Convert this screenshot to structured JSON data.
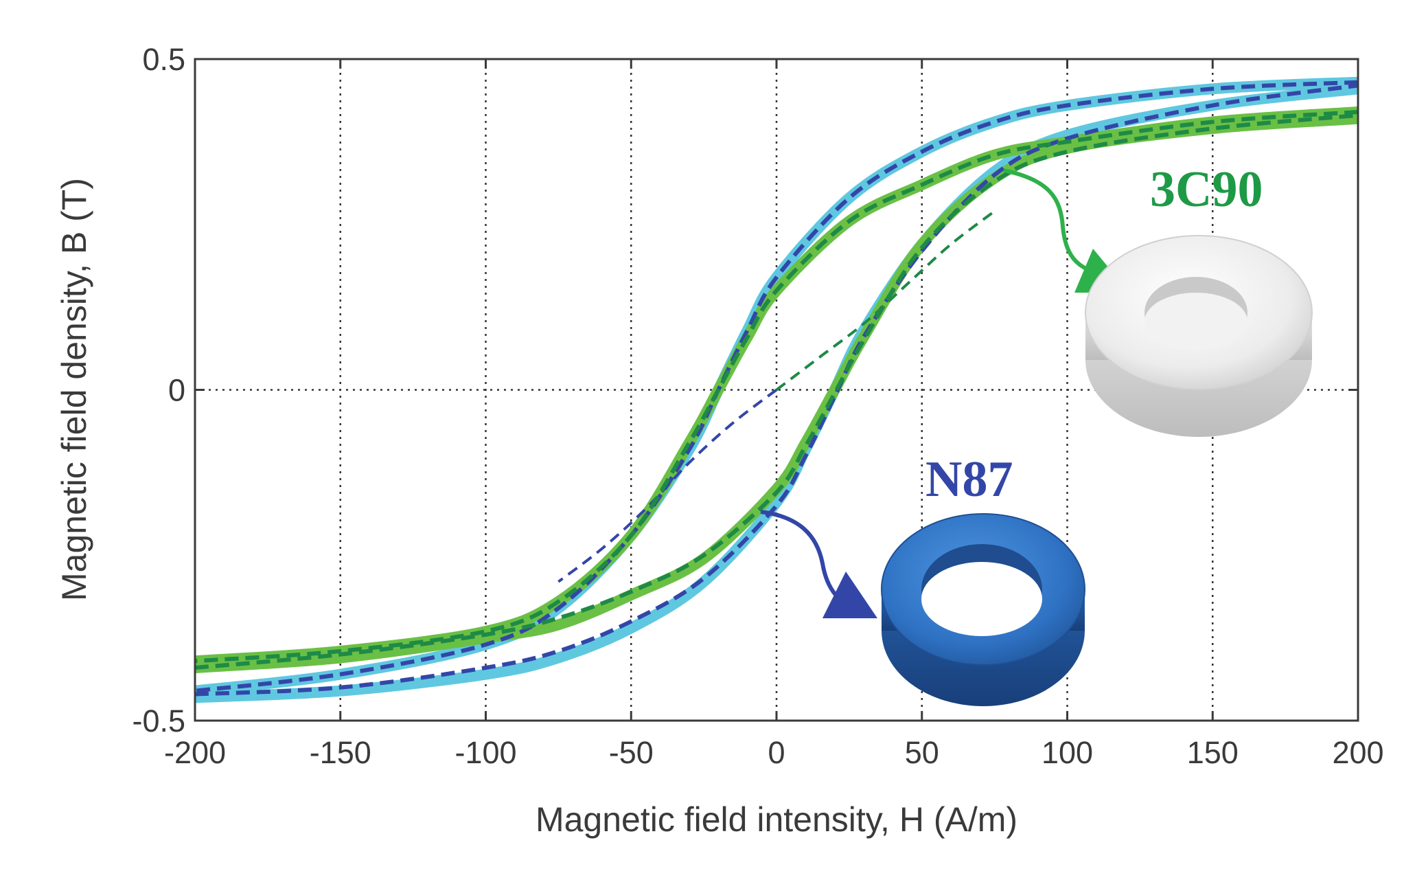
{
  "chart_data": {
    "type": "line",
    "title": "",
    "xlabel": "Magnetic field intensity, H (A/m)",
    "ylabel": "Magnetic field density, B (T)",
    "xlim": [
      -200,
      200
    ],
    "ylim": [
      -0.5,
      0.5
    ],
    "x_ticks": [
      -200,
      -150,
      -100,
      -50,
      0,
      50,
      100,
      150,
      200
    ],
    "x_tick_labels": [
      "-200",
      "-150",
      "-100",
      "-50",
      "0",
      "50",
      "100",
      "150",
      "200"
    ],
    "y_ticks": [
      -0.5,
      0,
      0.5
    ],
    "y_tick_labels": [
      "-0.5",
      "0",
      "0.5"
    ],
    "grid": true,
    "annotations": [
      {
        "text": "3C90",
        "color": "#1e9a46"
      },
      {
        "text": "N87",
        "color": "#3346a8"
      }
    ],
    "series": [
      {
        "name": "N87 measured (ascending)",
        "color": "#5fc8e0",
        "style": "solid",
        "x": [
          -200,
          -150,
          -100,
          -75,
          -50,
          -25,
          0,
          10,
          20,
          30,
          50,
          75,
          100,
          150,
          200
        ],
        "y": [
          -0.465,
          -0.455,
          -0.43,
          -0.405,
          -0.36,
          -0.29,
          -0.17,
          -0.09,
          0.0,
          0.09,
          0.22,
          0.33,
          0.385,
          0.43,
          0.455
        ]
      },
      {
        "name": "N87 measured (descending)",
        "color": "#5fc8e0",
        "style": "solid",
        "x": [
          200,
          150,
          100,
          75,
          50,
          25,
          0,
          -10,
          -20,
          -30,
          -50,
          -75,
          -100,
          -150,
          -200
        ],
        "y": [
          0.465,
          0.455,
          0.43,
          0.405,
          0.36,
          0.29,
          0.17,
          0.09,
          0.0,
          -0.09,
          -0.22,
          -0.33,
          -0.385,
          -0.43,
          -0.455
        ]
      },
      {
        "name": "3C90 measured (ascending)",
        "color": "#6ac045",
        "style": "solid",
        "x": [
          -200,
          -150,
          -100,
          -75,
          -50,
          -25,
          0,
          10,
          20,
          30,
          50,
          75,
          100,
          150,
          200
        ],
        "y": [
          -0.42,
          -0.405,
          -0.375,
          -0.355,
          -0.31,
          -0.255,
          -0.15,
          -0.08,
          0.0,
          0.08,
          0.22,
          0.32,
          0.365,
          0.395,
          0.41
        ]
      },
      {
        "name": "3C90 measured (descending)",
        "color": "#6ac045",
        "style": "solid",
        "x": [
          200,
          150,
          100,
          75,
          50,
          25,
          0,
          -10,
          -20,
          -30,
          -50,
          -75,
          -100,
          -150,
          -200
        ],
        "y": [
          0.42,
          0.405,
          0.375,
          0.355,
          0.31,
          0.255,
          0.15,
          0.08,
          0.0,
          -0.08,
          -0.22,
          -0.32,
          -0.365,
          -0.395,
          -0.41
        ]
      },
      {
        "name": "N87 model (ascending)",
        "color": "#3346a8",
        "style": "dashed",
        "x": [
          -200,
          -150,
          -100,
          -75,
          -50,
          -25,
          0,
          10,
          20,
          30,
          50,
          75,
          100,
          150,
          200
        ],
        "y": [
          -0.46,
          -0.45,
          -0.42,
          -0.395,
          -0.35,
          -0.285,
          -0.175,
          -0.1,
          -0.01,
          0.08,
          0.21,
          0.325,
          0.38,
          0.43,
          0.46
        ]
      },
      {
        "name": "N87 model (descending)",
        "color": "#3346a8",
        "style": "dashed",
        "x": [
          200,
          150,
          100,
          75,
          50,
          25,
          0,
          -10,
          -20,
          -30,
          -50,
          -75,
          -100,
          -150,
          -200
        ],
        "y": [
          0.465,
          0.455,
          0.43,
          0.405,
          0.36,
          0.29,
          0.17,
          0.09,
          0.0,
          -0.09,
          -0.22,
          -0.33,
          -0.385,
          -0.43,
          -0.455
        ]
      },
      {
        "name": "N87 model (initial)",
        "color": "#3346a8",
        "style": "dashed-thin",
        "x": [
          0,
          -15,
          -30,
          -45,
          -60,
          -75
        ],
        "y": [
          0.0,
          -0.05,
          -0.11,
          -0.18,
          -0.24,
          -0.29
        ]
      },
      {
        "name": "3C90 model (ascending)",
        "color": "#1e8a46",
        "style": "dashed",
        "x": [
          -200,
          -150,
          -100,
          -75,
          -50,
          -25,
          0,
          10,
          20,
          30,
          50,
          75,
          100,
          150,
          200
        ],
        "y": [
          -0.42,
          -0.4,
          -0.37,
          -0.345,
          -0.305,
          -0.25,
          -0.155,
          -0.085,
          -0.005,
          0.075,
          0.215,
          0.315,
          0.36,
          0.395,
          0.415
        ]
      },
      {
        "name": "3C90 model (descending)",
        "color": "#1e8a46",
        "style": "dashed",
        "x": [
          200,
          150,
          100,
          75,
          50,
          25,
          0,
          -10,
          -20,
          -30,
          -50,
          -75,
          -100,
          -150,
          -200
        ],
        "y": [
          0.42,
          0.405,
          0.375,
          0.355,
          0.31,
          0.255,
          0.15,
          0.08,
          0.0,
          -0.08,
          -0.22,
          -0.32,
          -0.365,
          -0.395,
          -0.41
        ]
      },
      {
        "name": "3C90 model (initial)",
        "color": "#1e8a46",
        "style": "dashed-thin",
        "x": [
          0,
          15,
          30,
          45,
          60,
          75
        ],
        "y": [
          0.0,
          0.05,
          0.1,
          0.16,
          0.22,
          0.27
        ]
      }
    ]
  },
  "colors": {
    "green_accent": "#1e9a46",
    "arrow_green": "#2eb14a",
    "blue_accent": "#3346a8",
    "toroid_blue": "#2f6fc0",
    "toroid_white": "#eeeeee"
  },
  "icons": [
    "arrow-3c90-icon",
    "arrow-n87-icon",
    "toroid-3c90-icon",
    "toroid-n87-icon"
  ]
}
